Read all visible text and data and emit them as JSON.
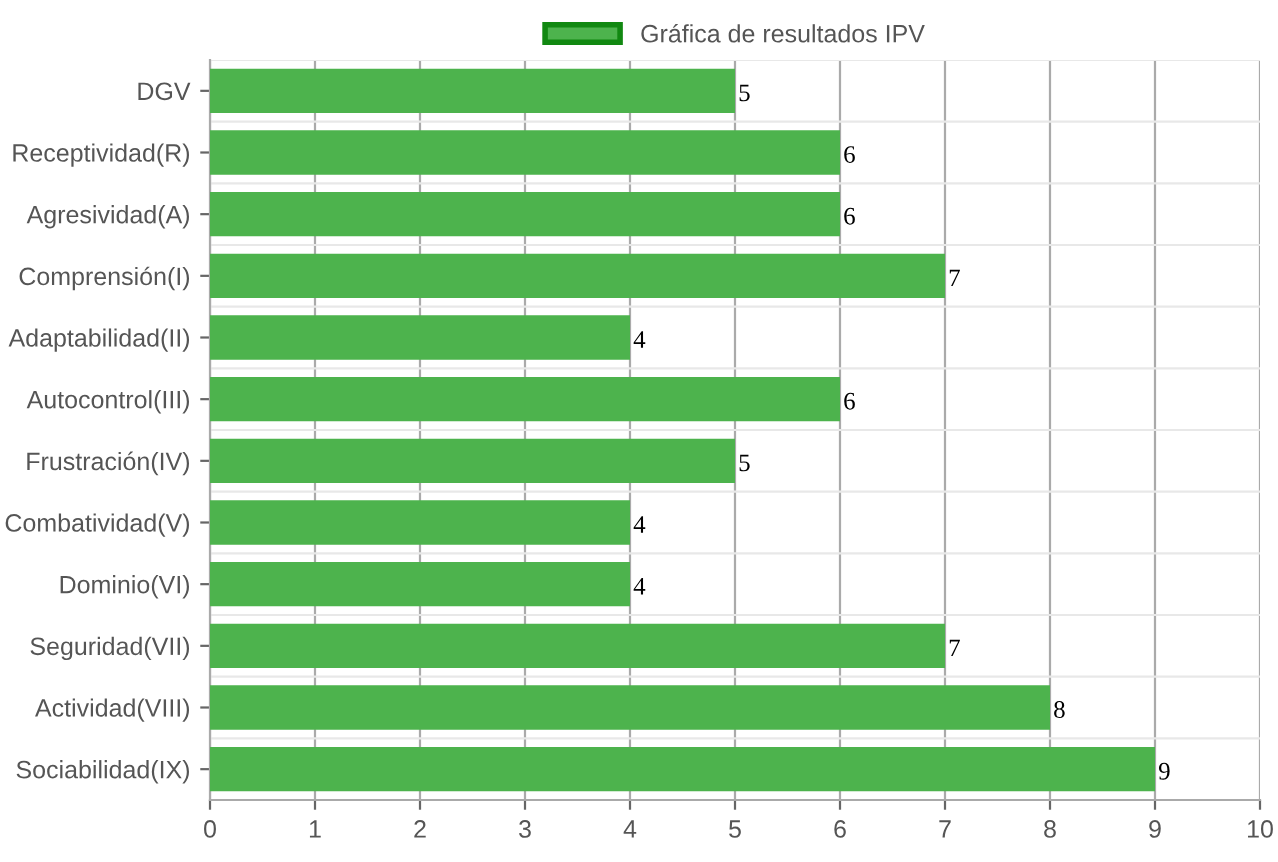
{
  "chart_data": {
    "type": "bar",
    "orientation": "horizontal",
    "categories": [
      "DGV",
      "Receptividad(R)",
      "Agresividad(A)",
      "Comprensión(I)",
      "Adaptabilidad(II)",
      "Autocontrol(III)",
      "Frustración(IV)",
      "Combatividad(V)",
      "Dominio(VI)",
      "Seguridad(VII)",
      "Actividad(VIII)",
      "Sociabilidad(IX)"
    ],
    "series": [
      {
        "name": "Gráfica de resultados IPV",
        "color": "#4db34d",
        "values": [
          5,
          6,
          6,
          7,
          4,
          6,
          5,
          4,
          4,
          7,
          8,
          9
        ]
      }
    ],
    "xlim": [
      0,
      10
    ],
    "xticks": [
      0,
      1,
      2,
      3,
      4,
      5,
      6,
      7,
      8,
      9,
      10
    ],
    "grid": true,
    "legend": "top",
    "data_labels": true
  }
}
